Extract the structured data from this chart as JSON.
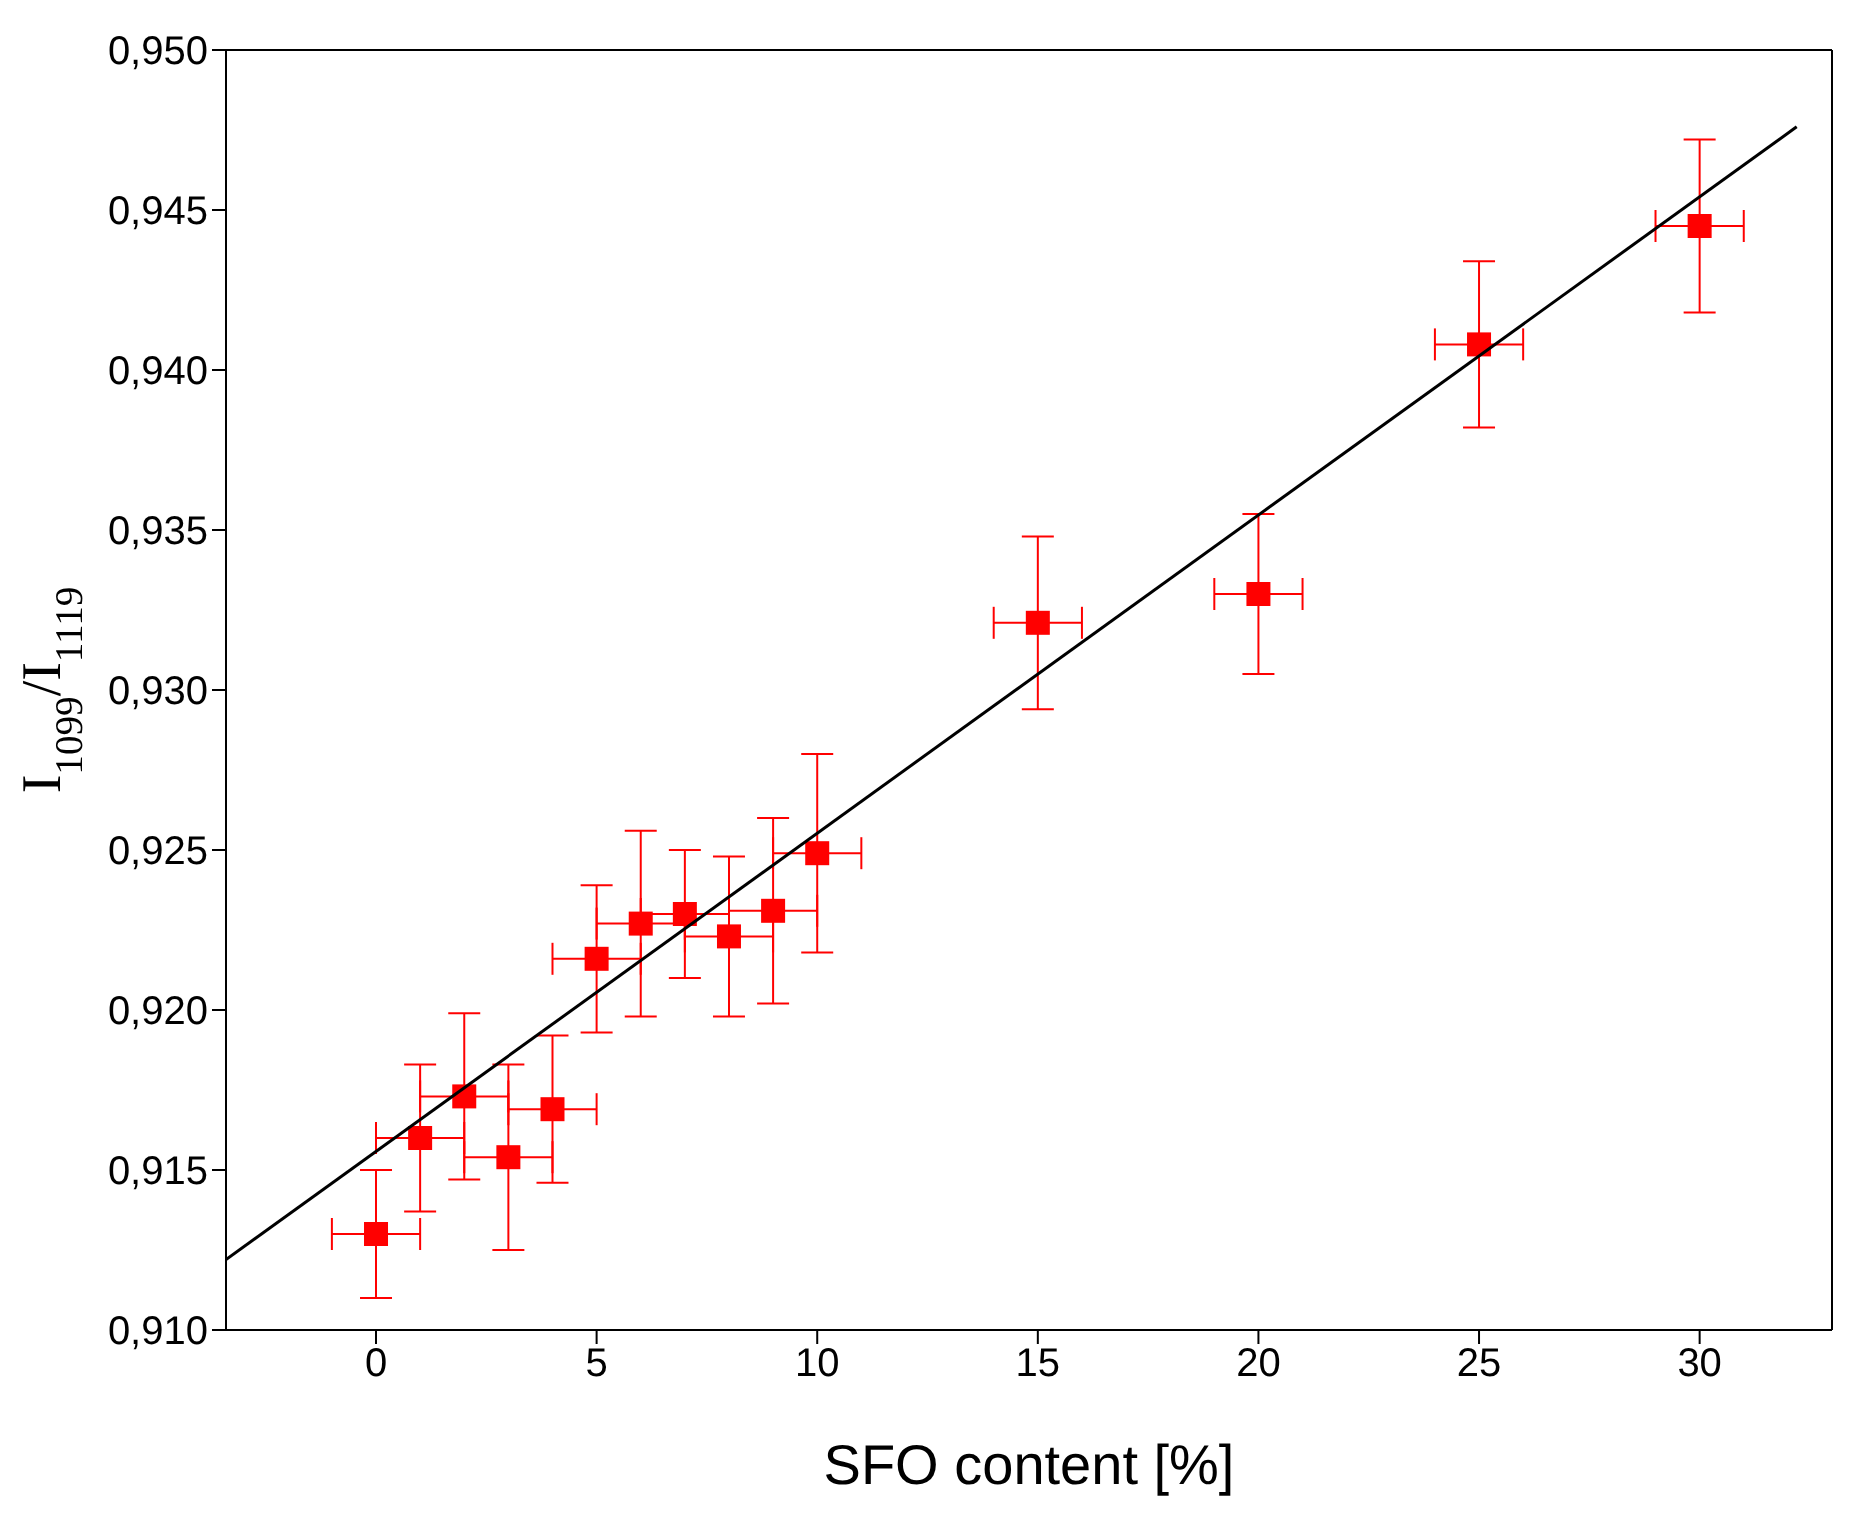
{
  "chart_data": {
    "type": "scatter",
    "xlabel": "SFO content  [%]",
    "ylabel": "I$_{1099}$/I$_{1119}$",
    "xlim": [
      -3.4,
      33
    ],
    "xticks": [
      0,
      5,
      10,
      15,
      20,
      25,
      30
    ],
    "ylim": [
      0.91,
      0.95
    ],
    "yticks": [
      {
        "value": 0.91,
        "label": "0,910"
      },
      {
        "value": 0.915,
        "label": "0,915"
      },
      {
        "value": 0.92,
        "label": "0,920"
      },
      {
        "value": 0.925,
        "label": "0,925"
      },
      {
        "value": 0.93,
        "label": "0,930"
      },
      {
        "value": 0.935,
        "label": "0,935"
      },
      {
        "value": 0.94,
        "label": "0,940"
      },
      {
        "value": 0.945,
        "label": "0,945"
      },
      {
        "value": 0.95,
        "label": "0,950"
      }
    ],
    "grid": false,
    "legend": false,
    "series": [
      {
        "marker": "square",
        "color": "#ff0000",
        "x": [
          0,
          1,
          2,
          3,
          4,
          5,
          6,
          7,
          8,
          9,
          10,
          15,
          20,
          25,
          30
        ],
        "values": [
          0.913,
          0.916,
          0.9173,
          0.9154,
          0.9169,
          0.9216,
          0.9227,
          0.923,
          0.9223,
          0.9231,
          0.9249,
          0.9321,
          0.933,
          0.9408,
          0.9445
        ],
        "errors": [
          0.002,
          0.0023,
          0.0026,
          0.0029,
          0.0023,
          0.0023,
          0.0029,
          0.002,
          0.0025,
          0.0029,
          0.0031,
          0.0027,
          0.0025,
          0.0026,
          0.0027
        ],
        "xerrors": [
          1,
          1,
          1,
          1,
          1,
          1,
          1,
          1,
          1,
          1,
          1,
          1,
          1,
          1,
          1
        ]
      },
      {
        "type": "line",
        "marker": "none",
        "color": "#000000",
        "x": [
          -3.4,
          32.2
        ],
        "values": [
          0.9122,
          0.9476
        ]
      }
    ]
  }
}
